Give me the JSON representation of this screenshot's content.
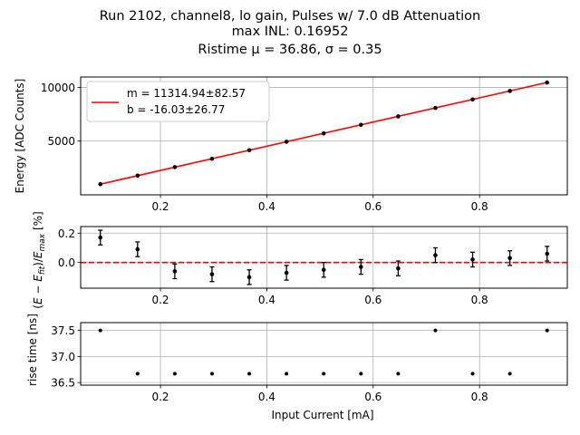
{
  "chart_data": [
    {
      "type": "line",
      "title_lines": [
        "Run 2102, channel8, lo gain, Pulses w/ 7.0 dB Attenuation",
        "max INL: 0.16952",
        "Ristime μ = 36.86, σ = 0.35"
      ],
      "xlabel": "",
      "ylabel": "Energy [ADC Counts]",
      "xlim": [
        0.05,
        0.965
      ],
      "ylim": [
        -30,
        10980
      ],
      "grid": true,
      "x_ticks": [
        0.2,
        0.4,
        0.6,
        0.8
      ],
      "x_tick_labels": [
        "0.2",
        "0.4",
        "0.6",
        "0.8"
      ],
      "y_ticks": [
        5000,
        10000
      ],
      "y_tick_labels": [
        "5000",
        "10000"
      ],
      "legend_position": "top-left",
      "fit": {
        "m": 11314.94,
        "b": -16.03,
        "label_m": "m = 11314.94±82.57",
        "label_b": "b = -16.03±26.77",
        "color": "#ff0000"
      },
      "points": {
        "x": [
          0.087,
          0.157,
          0.227,
          0.297,
          0.367,
          0.437,
          0.507,
          0.577,
          0.647,
          0.717,
          0.787,
          0.857,
          0.927
        ],
        "y": [
          970,
          1765,
          2560,
          3345,
          4140,
          4930,
          5715,
          6510,
          7300,
          8090,
          8880,
          9675,
          10465
        ]
      }
    },
    {
      "type": "scatter",
      "xlabel": "",
      "ylabel": "(E − E_fit)/E_max [%]",
      "ylabel_parts": [
        "(",
        "E",
        " − ",
        "E",
        "fit",
        ")/",
        "E",
        "max",
        " [%]"
      ],
      "xlim": [
        0.05,
        0.965
      ],
      "ylim": [
        -0.175,
        0.245
      ],
      "grid": true,
      "x_ticks": [
        0.2,
        0.4,
        0.6,
        0.8
      ],
      "x_tick_labels": [
        "0.2",
        "0.4",
        "0.6",
        "0.8"
      ],
      "y_ticks": [
        0.0,
        0.2
      ],
      "y_tick_labels": [
        "0.0",
        "0.2"
      ],
      "zero_line_color": "#ff0000",
      "points": {
        "x": [
          0.087,
          0.157,
          0.227,
          0.297,
          0.367,
          0.437,
          0.507,
          0.577,
          0.647,
          0.717,
          0.787,
          0.857,
          0.927
        ],
        "y": [
          0.17,
          0.09,
          -0.06,
          -0.08,
          -0.1,
          -0.07,
          -0.05,
          -0.03,
          -0.04,
          0.05,
          0.02,
          0.03,
          0.06
        ],
        "yerr": [
          0.05,
          0.05,
          0.05,
          0.05,
          0.05,
          0.05,
          0.05,
          0.05,
          0.05,
          0.05,
          0.05,
          0.05,
          0.05
        ]
      }
    },
    {
      "type": "scatter",
      "xlabel": "Input Current [mA]",
      "ylabel": "rise time [ns]",
      "xlim": [
        0.05,
        0.965
      ],
      "ylim": [
        36.45,
        37.65
      ],
      "grid": true,
      "x_ticks": [
        0.2,
        0.4,
        0.6,
        0.8
      ],
      "x_tick_labels": [
        "0.2",
        "0.4",
        "0.6",
        "0.8"
      ],
      "y_ticks": [
        36.5,
        37.0,
        37.5
      ],
      "y_tick_labels": [
        "36.5",
        "37.0",
        "37.5"
      ],
      "points": {
        "x": [
          0.087,
          0.157,
          0.227,
          0.297,
          0.367,
          0.437,
          0.507,
          0.577,
          0.647,
          0.717,
          0.787,
          0.857,
          0.927
        ],
        "y": [
          37.5,
          36.67,
          36.67,
          36.67,
          36.67,
          36.67,
          36.67,
          36.67,
          36.67,
          37.5,
          36.67,
          36.67,
          37.5
        ]
      }
    }
  ]
}
